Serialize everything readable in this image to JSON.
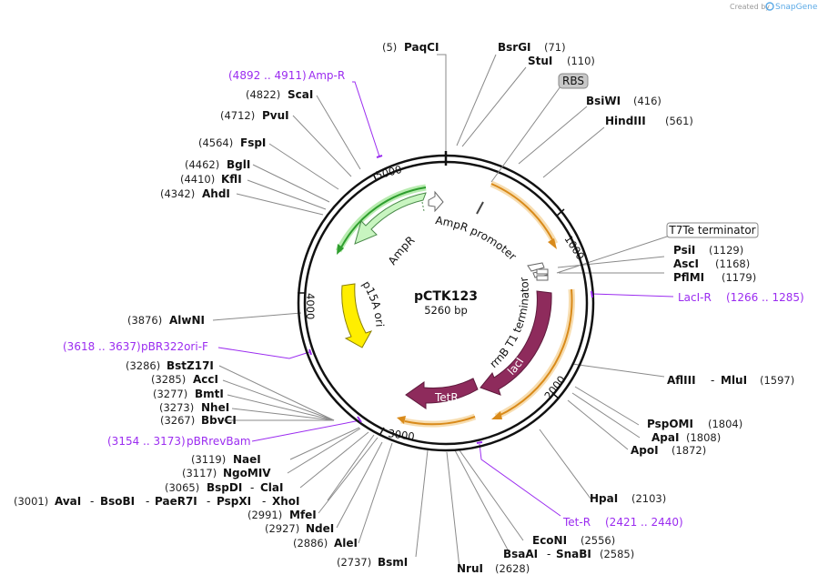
{
  "watermark": {
    "created_by": "Created by",
    "brand": "SnapGene"
  },
  "plasmid": {
    "name": "pCTK123",
    "size": "5260 bp"
  },
  "ticks": [
    "1000",
    "2000",
    "3000",
    "4000",
    "5000"
  ],
  "enzymes": {
    "paci": {
      "pos": "(5)",
      "name": "PaqCI"
    },
    "bsrgi": {
      "pos": "(71)",
      "name": "BsrGI"
    },
    "stui": {
      "pos": "(110)",
      "name": "StuI"
    },
    "bsiwi": {
      "pos": "(416)",
      "name": "BsiWI"
    },
    "hindiii": {
      "pos": "(561)",
      "name": "HindIII"
    },
    "psii": {
      "pos": "(1129)",
      "name": "PsiI"
    },
    "asci": {
      "pos": "(1168)",
      "name": "AscI"
    },
    "pflmi": {
      "pos": "(1179)",
      "name": "PflMI"
    },
    "afliii": {
      "pos": "(1597)",
      "name": "AflIII",
      "name2": "MluI"
    },
    "pspomi": {
      "pos": "(1804)",
      "name": "PspOMI"
    },
    "apai": {
      "pos": "(1808)",
      "name": "ApaI"
    },
    "apoi": {
      "pos": "(1872)",
      "name": "ApoI"
    },
    "hpai": {
      "pos": "(2103)",
      "name": "HpaI"
    },
    "econi": {
      "pos": "(2556)",
      "name": "EcoNI"
    },
    "bsaai": {
      "pos": "(2585)",
      "name": "BsaAI",
      "name2": "SnaBI"
    },
    "nrui": {
      "pos": "(2628)",
      "name": "NruI"
    },
    "bsmi": {
      "pos": "(2737)",
      "name": "BsmI"
    },
    "alei": {
      "pos": "(2886)",
      "name": "AleI"
    },
    "ndei": {
      "pos": "(2927)",
      "name": "NdeI"
    },
    "mfei": {
      "pos": "(2991)",
      "name": "MfeI"
    },
    "avai": {
      "pos": "(3001)",
      "name": "AvaI",
      "name2": "BsoBI",
      "name3": "PaeR7I",
      "name4": "PspXI",
      "name5": "XhoI"
    },
    "bspdi": {
      "pos": "(3065)",
      "name": "BspDI",
      "name2": "ClaI"
    },
    "ngomiv": {
      "pos": "(3117)",
      "name": "NgoMIV"
    },
    "naei": {
      "pos": "(3119)",
      "name": "NaeI"
    },
    "bbvci": {
      "pos": "(3267)",
      "name": "BbvCI"
    },
    "nhei": {
      "pos": "(3273)",
      "name": "NheI"
    },
    "bmti": {
      "pos": "(3277)",
      "name": "BmtI"
    },
    "acci": {
      "pos": "(3285)",
      "name": "AccI"
    },
    "bstz17i": {
      "pos": "(3286)",
      "name": "BstZ17I"
    },
    "alwni": {
      "pos": "(3876)",
      "name": "AlwNI"
    },
    "ahdi": {
      "pos": "(4342)",
      "name": "AhdI"
    },
    "kfli": {
      "pos": "(4410)",
      "name": "KflI"
    },
    "bgli": {
      "pos": "(4462)",
      "name": "BglI"
    },
    "fspi": {
      "pos": "(4564)",
      "name": "FspI"
    },
    "pvui": {
      "pos": "(4712)",
      "name": "PvuI"
    },
    "scai": {
      "pos": "(4822)",
      "name": "ScaI"
    }
  },
  "primers": {
    "ampr": {
      "range": "(4892 .. 4911)",
      "name": "Amp-R"
    },
    "laci": {
      "name": "LacI-R",
      "range": "(1266 .. 1285)"
    },
    "pbr322": {
      "range": "(3618 .. 3637)",
      "name": "pBR322ori-F"
    },
    "pbrrev": {
      "range": "(3154 .. 3173)",
      "name": "pBRrevBam"
    },
    "tetr": {
      "name": "Tet-R",
      "range": "(2421 .. 2440)"
    }
  },
  "features": {
    "rbs": "RBS",
    "t7te": "T7Te terminator",
    "ampr_promoter": "AmpR promoter",
    "ampr": "AmpR",
    "p15a_ori": "p15A ori",
    "rrnb": "rrnB T1 terminator",
    "laci": "lacI",
    "tetr": "TetR"
  },
  "colors": {
    "ampr_fill": "#c8f5c0",
    "ampr_dark": "#2e9e2e",
    "ori_fill": "#ffee00",
    "repressor_fill": "#8e2b5c",
    "orange_arc": "#d98a1a",
    "orange_glow": "#f7ddb0",
    "primer": "#9b2cf0",
    "rbs_box": "#c8c8c8"
  }
}
